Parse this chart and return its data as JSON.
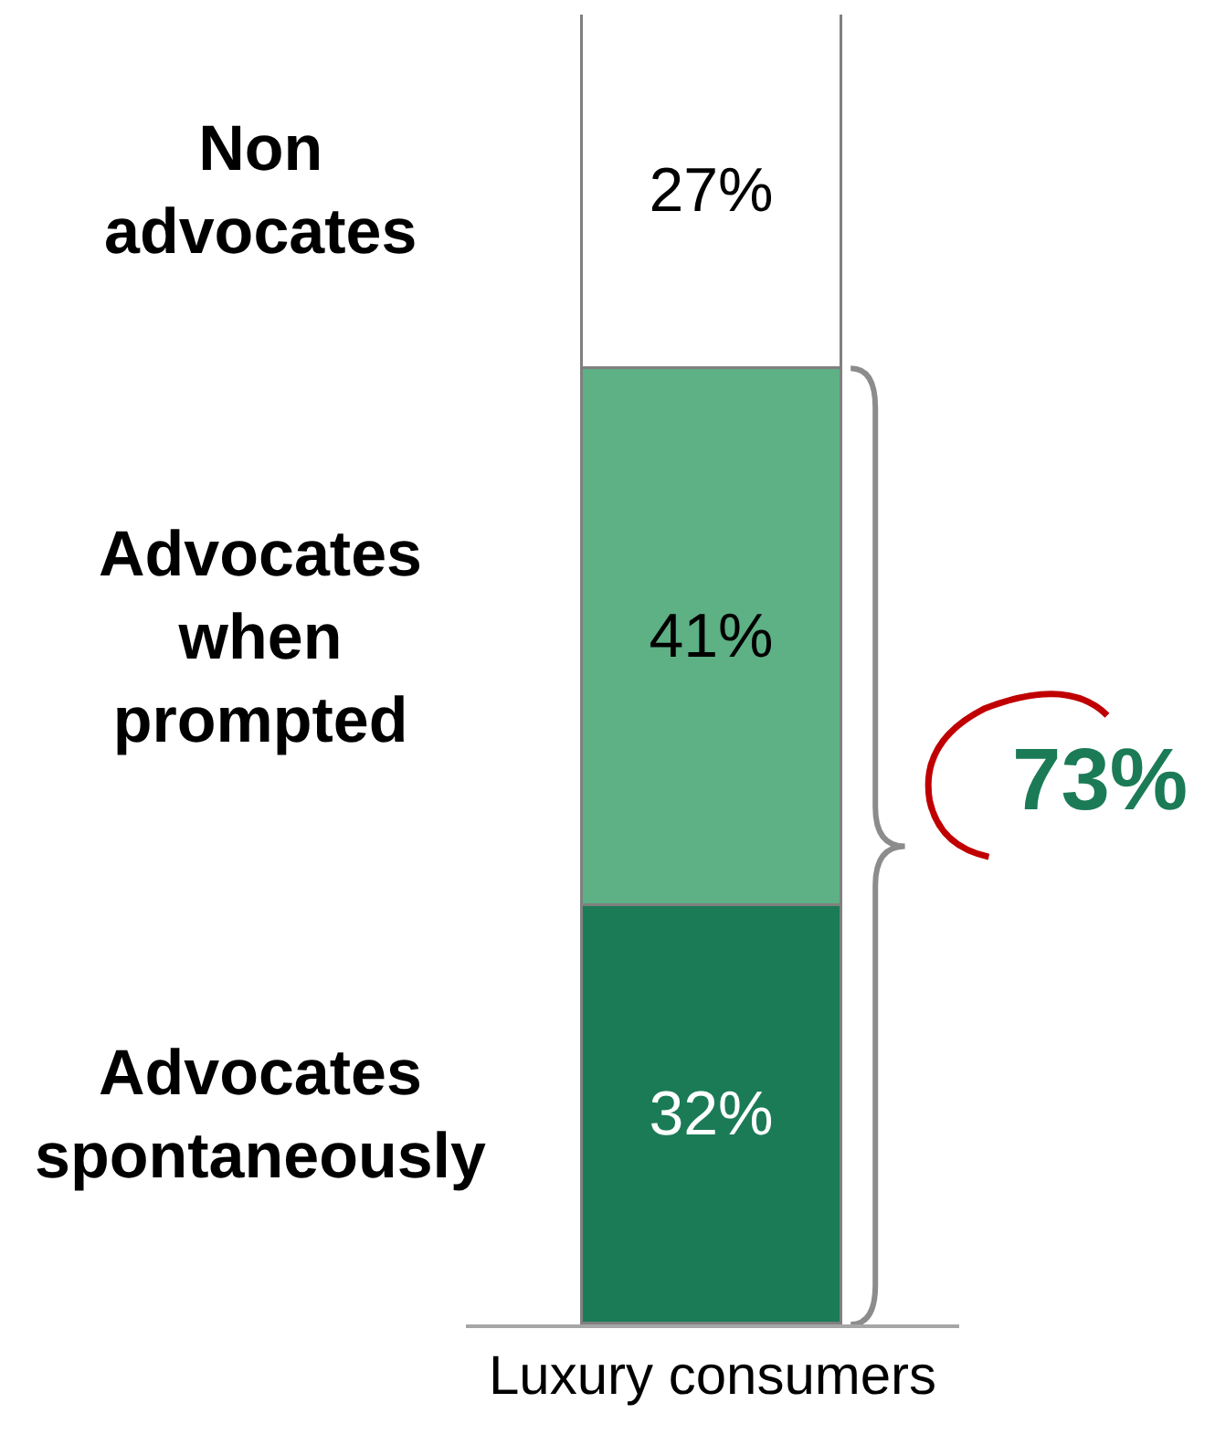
{
  "chart_data": {
    "type": "bar",
    "stacked": true,
    "ylim": [
      0,
      100
    ],
    "categories": [
      "Luxury consumers"
    ],
    "series": [
      {
        "name": "Advocates spontaneously",
        "color": "#1b7b57",
        "values": [
          32
        ],
        "value_labels": [
          "32%"
        ]
      },
      {
        "name": "Advocates when prompted",
        "color": "#5eb085",
        "values": [
          41
        ],
        "value_labels": [
          "41%"
        ]
      },
      {
        "name": "Non advocates",
        "color": "#ffffff",
        "values": [
          27
        ],
        "value_labels": [
          "27%"
        ]
      }
    ],
    "annotations": [
      "73%"
    ],
    "legend": false
  }
}
